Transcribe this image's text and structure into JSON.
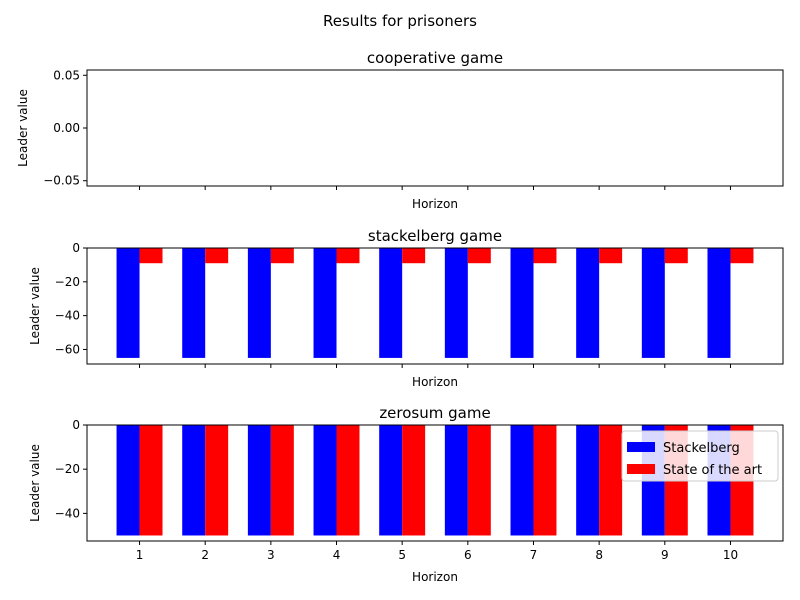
{
  "figure": {
    "suptitle": "Results for prisoners"
  },
  "chart_data": [
    {
      "type": "bar",
      "title": "cooperative game",
      "xlabel": "Horizon",
      "ylabel": "Leader value",
      "x": [
        1,
        2,
        3,
        4,
        5,
        6,
        7,
        8,
        9,
        10
      ],
      "ylim": [
        -0.055,
        0.055
      ],
      "yticks": [
        0.05,
        0.0,
        -0.05
      ],
      "ytick_labels": [
        "0.05",
        "0.00",
        "−0.05"
      ],
      "show_xtick_labels": false,
      "grid": false,
      "series": [
        {
          "name": "Stackelberg",
          "color": "#0000ff",
          "values": [
            0,
            0,
            0,
            0,
            0,
            0,
            0,
            0,
            0,
            0
          ]
        },
        {
          "name": "State of the art",
          "color": "#ff0000",
          "values": [
            0,
            0,
            0,
            0,
            0,
            0,
            0,
            0,
            0,
            0
          ]
        }
      ]
    },
    {
      "type": "bar",
      "title": "stackelberg game",
      "xlabel": "Horizon",
      "ylabel": "Leader value",
      "x": [
        1,
        2,
        3,
        4,
        5,
        6,
        7,
        8,
        9,
        10
      ],
      "ylim": [
        -68.6,
        0
      ],
      "yticks": [
        0,
        -20,
        -40,
        -60
      ],
      "ytick_labels": [
        "0",
        "−20",
        "−40",
        "−60"
      ],
      "show_xtick_labels": false,
      "grid": false,
      "series": [
        {
          "name": "Stackelberg",
          "color": "#0000ff",
          "values": [
            -65,
            -65,
            -65,
            -65,
            -65,
            -65,
            -65,
            -65,
            -65,
            -65
          ]
        },
        {
          "name": "State of the art",
          "color": "#ff0000",
          "values": [
            -9,
            -9,
            -9,
            -9,
            -9,
            -9,
            -9,
            -9,
            -9,
            -9
          ]
        }
      ]
    },
    {
      "type": "bar",
      "title": "zerosum game",
      "xlabel": "Horizon",
      "ylabel": "Leader value",
      "x": [
        1,
        2,
        3,
        4,
        5,
        6,
        7,
        8,
        9,
        10
      ],
      "ylim": [
        -52.5,
        0
      ],
      "yticks": [
        0,
        -20,
        -40
      ],
      "ytick_labels": [
        "0",
        "−20",
        "−40"
      ],
      "xtick_labels": [
        "1",
        "2",
        "3",
        "4",
        "5",
        "6",
        "7",
        "8",
        "9",
        "10"
      ],
      "show_xtick_labels": true,
      "grid": false,
      "legend": {
        "placement": "top-right",
        "entries": [
          "Stackelberg",
          "State of the art"
        ]
      },
      "series": [
        {
          "name": "Stackelberg",
          "color": "#0000ff",
          "values": [
            -50,
            -50,
            -50,
            -50,
            -50,
            -50,
            -50,
            -50,
            -50,
            -50
          ]
        },
        {
          "name": "State of the art",
          "color": "#ff0000",
          "values": [
            -50,
            -50,
            -50,
            -50,
            -50,
            -50,
            -50,
            -50,
            -50,
            -50
          ]
        }
      ]
    }
  ]
}
